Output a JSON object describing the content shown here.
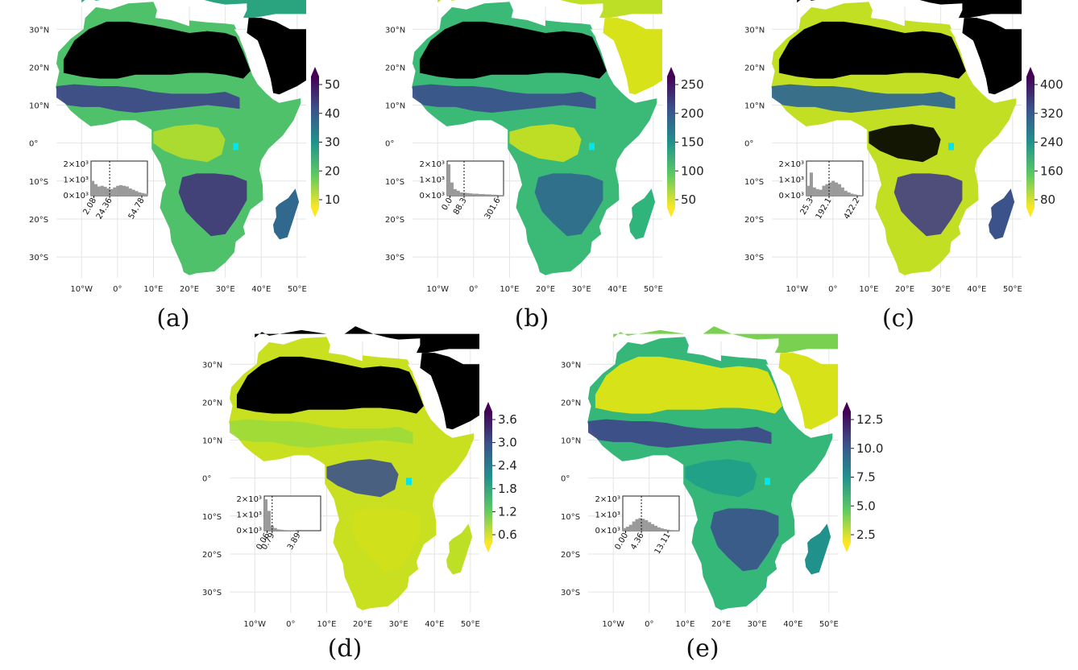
{
  "lat_ticks": [
    "30°N",
    "20°N",
    "10°N",
    "0°",
    "10°S",
    "20°S",
    "30°S"
  ],
  "lon_ticks": [
    "10°W",
    "0°",
    "10°E",
    "20°E",
    "30°E",
    "40°E",
    "50°E"
  ],
  "colors": {
    "viridis_low": "#e5e419",
    "viridis_mid": "#21918c",
    "viridis_high": "#440154",
    "no_data": "#000000",
    "water": "#00e5ee"
  },
  "panels": [
    {
      "id": "a",
      "caption": "(a)",
      "colorbar_ticks": [
        "50",
        "40",
        "30",
        "20",
        "10"
      ],
      "hist": {
        "y_ticks": [
          "2×10³",
          "1×10³",
          "0×10³"
        ],
        "x_ticks": [
          "2.08",
          "24.36",
          "54.78"
        ],
        "median_marker": "24.36"
      }
    },
    {
      "id": "b",
      "caption": "(b)",
      "colorbar_ticks": [
        "250",
        "200",
        "150",
        "100",
        "50"
      ],
      "hist": {
        "y_ticks": [
          "2×10³",
          "1×10³",
          "0×10³"
        ],
        "x_ticks": [
          "0.0",
          "88.3",
          "301.6"
        ],
        "median_marker": "88.3"
      }
    },
    {
      "id": "c",
      "caption": "(c)",
      "colorbar_ticks": [
        "400",
        "320",
        "240",
        "160",
        "80"
      ],
      "hist": {
        "y_ticks": [
          "2×10³",
          "1×10³",
          "0×10³"
        ],
        "x_ticks": [
          "25.3",
          "192.1",
          "422.2"
        ],
        "median_marker": "192.1"
      }
    },
    {
      "id": "d",
      "caption": "(d)",
      "colorbar_ticks": [
        "3.6",
        "3.0",
        "2.4",
        "1.8",
        "1.2",
        "0.6"
      ],
      "hist": {
        "y_ticks": [
          "2×10³",
          "1×10³",
          "0×10³"
        ],
        "x_ticks": [
          "0.06",
          "0.79",
          "3.89"
        ],
        "median_marker": "0.79"
      }
    },
    {
      "id": "e",
      "caption": "(e)",
      "colorbar_ticks": [
        "12.5",
        "10.0",
        "7.5",
        "5.0",
        "2.5"
      ],
      "hist": {
        "y_ticks": [
          "2×10³",
          "1×10³",
          "0×10³"
        ],
        "x_ticks": [
          "0.00",
          "4.36",
          "13.11"
        ],
        "median_marker": "4.36"
      }
    }
  ]
}
